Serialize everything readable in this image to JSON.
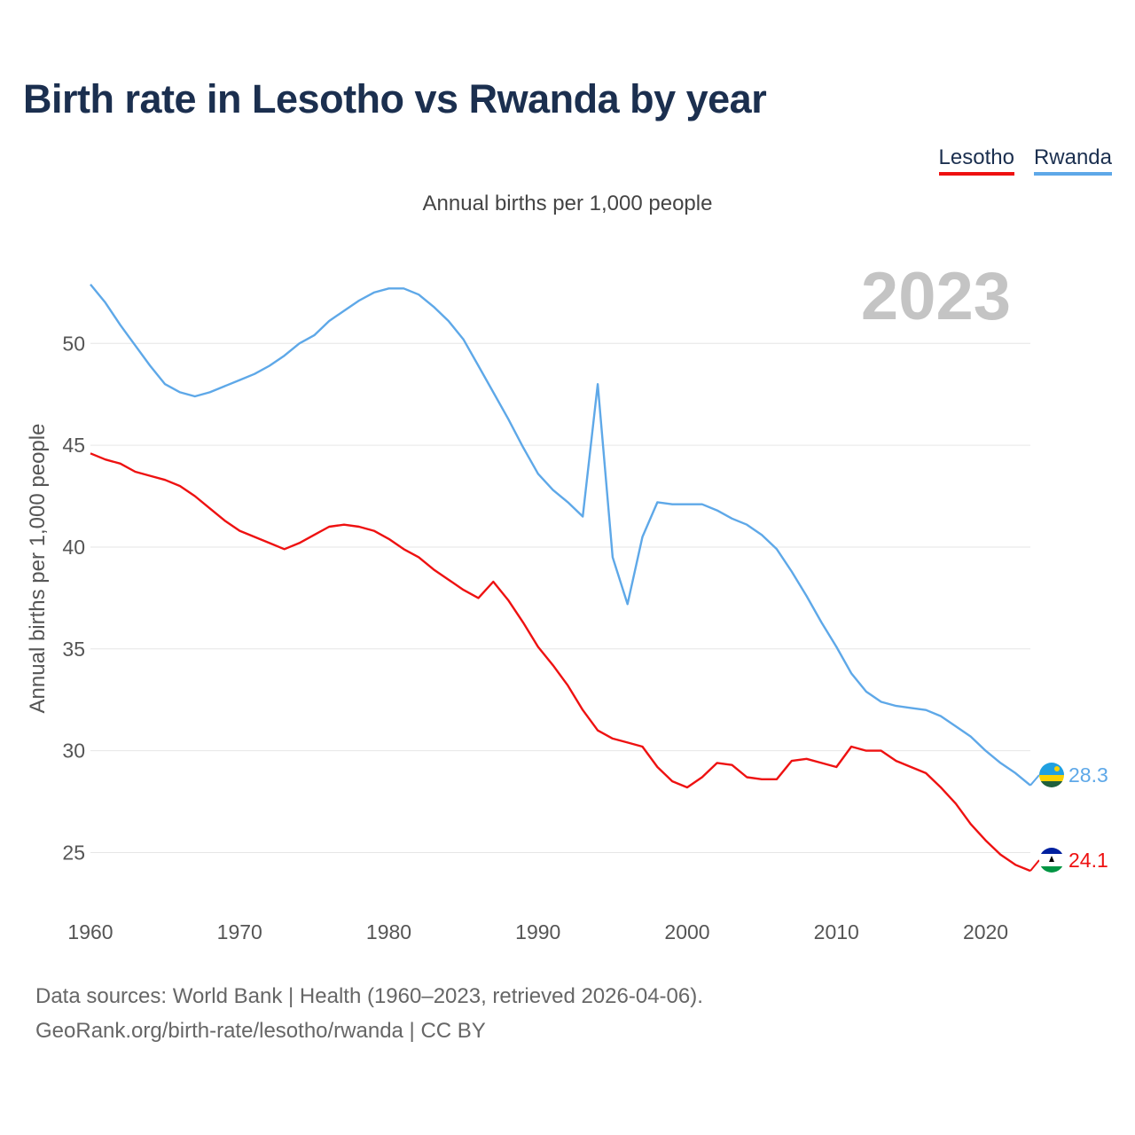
{
  "title": "Birth rate in Lesotho vs Rwanda by year",
  "legend": [
    {
      "name": "Lesotho",
      "color": "#ee1111"
    },
    {
      "name": "Rwanda",
      "color": "#5ea8e8"
    }
  ],
  "footer": {
    "line1": "Data sources: World Bank | Health (1960–2023, retrieved 2026-04-06).",
    "line2": "GeoRank.org/birth-rate/lesotho/rwanda | CC BY"
  },
  "chart_data": {
    "type": "line",
    "title": "Birth rate in Lesotho vs Rwanda by year",
    "subtitle": "Annual births per 1,000 people",
    "ylabel": "Annual births per 1,000 people",
    "xlabel": "",
    "year_label": "2023",
    "xlim": [
      1960,
      2023
    ],
    "ylim": [
      22.8,
      53.8
    ],
    "x_ticks": [
      1960,
      1970,
      1980,
      1990,
      2000,
      2010,
      2020
    ],
    "y_ticks": [
      25,
      30,
      35,
      40,
      45,
      50
    ],
    "grid": true,
    "x": [
      1960,
      1961,
      1962,
      1963,
      1964,
      1965,
      1966,
      1967,
      1968,
      1969,
      1970,
      1971,
      1972,
      1973,
      1974,
      1975,
      1976,
      1977,
      1978,
      1979,
      1980,
      1981,
      1982,
      1983,
      1984,
      1985,
      1986,
      1987,
      1988,
      1989,
      1990,
      1991,
      1992,
      1993,
      1994,
      1995,
      1996,
      1997,
      1998,
      1999,
      2000,
      2001,
      2002,
      2003,
      2004,
      2005,
      2006,
      2007,
      2008,
      2009,
      2010,
      2011,
      2012,
      2013,
      2014,
      2015,
      2016,
      2017,
      2018,
      2019,
      2020,
      2021,
      2022,
      2023
    ],
    "series": [
      {
        "name": "Lesotho",
        "color": "#ee1111",
        "end_label": "24.1",
        "values": [
          44.6,
          44.3,
          44.1,
          43.7,
          43.5,
          43.3,
          43.0,
          42.5,
          41.9,
          41.3,
          40.8,
          40.5,
          40.2,
          39.9,
          40.2,
          40.6,
          41.0,
          41.1,
          41.0,
          40.8,
          40.4,
          39.9,
          39.5,
          38.9,
          38.4,
          37.9,
          37.5,
          38.3,
          37.4,
          36.3,
          35.1,
          34.2,
          33.2,
          32.0,
          31.0,
          30.6,
          30.4,
          30.2,
          29.2,
          28.5,
          28.2,
          28.7,
          29.4,
          29.3,
          28.7,
          28.6,
          28.6,
          29.5,
          29.6,
          29.4,
          29.2,
          30.2,
          30.0,
          30.0,
          29.5,
          29.2,
          28.9,
          28.2,
          27.4,
          26.4,
          25.6,
          24.9,
          24.4,
          24.1
        ]
      },
      {
        "name": "Rwanda",
        "color": "#5ea8e8",
        "end_label": "28.3",
        "values": [
          52.9,
          52.0,
          50.9,
          49.9,
          48.9,
          48.0,
          47.6,
          47.4,
          47.6,
          47.9,
          48.2,
          48.5,
          48.9,
          49.4,
          50.0,
          50.4,
          51.1,
          51.6,
          52.1,
          52.5,
          52.7,
          52.7,
          52.4,
          51.8,
          51.1,
          50.2,
          48.9,
          47.6,
          46.3,
          44.9,
          43.6,
          42.8,
          42.2,
          41.5,
          48.0,
          39.5,
          37.2,
          40.5,
          42.2,
          42.1,
          42.1,
          42.1,
          41.8,
          41.4,
          41.1,
          40.6,
          39.9,
          38.8,
          37.6,
          36.3,
          35.1,
          33.8,
          32.9,
          32.4,
          32.2,
          32.1,
          32.0,
          31.7,
          31.2,
          30.7,
          30.0,
          29.4,
          28.9,
          28.3
        ]
      }
    ]
  }
}
